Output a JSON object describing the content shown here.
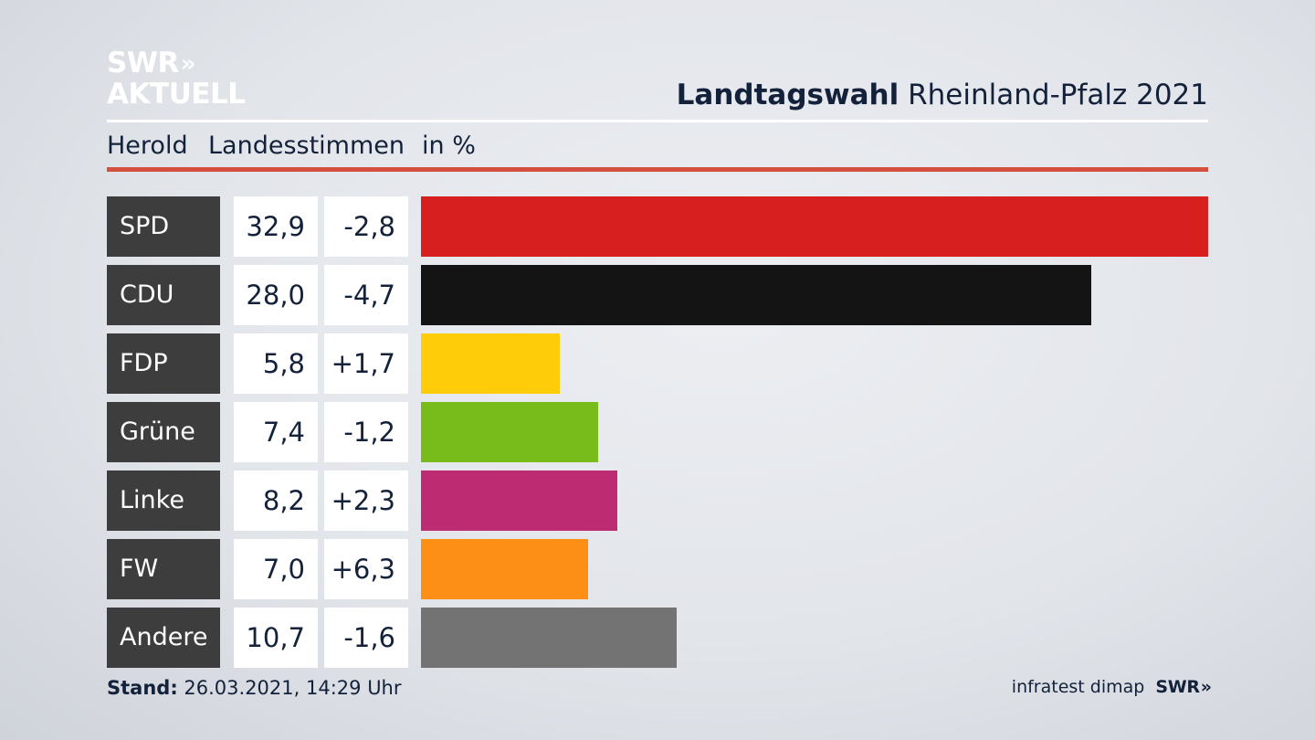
{
  "logo": {
    "line1": "SWR",
    "chevrons": "»",
    "line2": "AKTUELL"
  },
  "header": {
    "title_bold": "Landtagswahl",
    "title_regular": "Rheinland-Pfalz 2021"
  },
  "subheader": {
    "region": "Herold",
    "vote_type": "Landesstimmen",
    "unit": "in %"
  },
  "chart_data": {
    "type": "bar",
    "orientation": "horizontal",
    "categories": [
      "SPD",
      "CDU",
      "FDP",
      "Grüne",
      "Linke",
      "FW",
      "Andere"
    ],
    "values": [
      32.9,
      28.0,
      5.8,
      7.4,
      8.2,
      7.0,
      10.7
    ],
    "value_labels": [
      "32,9",
      "28,0",
      "5,8",
      "7,4",
      "8,2",
      "7,0",
      "10,7"
    ],
    "change_labels": [
      "-2,8",
      "-4,7",
      "+1,7",
      "-1,2",
      "+2,3",
      "+6,3",
      "-1,6"
    ],
    "colors": [
      "#d71f20",
      "#141414",
      "#ffcc0a",
      "#78bc1b",
      "#bd2c73",
      "#fd8e16",
      "#737373"
    ],
    "xlim": [
      0,
      32.9
    ]
  },
  "footer": {
    "stand_label": "Stand:",
    "stand_value": "26.03.2021, 14:29 Uhr",
    "source": "infratest dimap",
    "brand": "SWR",
    "brand_chevrons": "»"
  }
}
